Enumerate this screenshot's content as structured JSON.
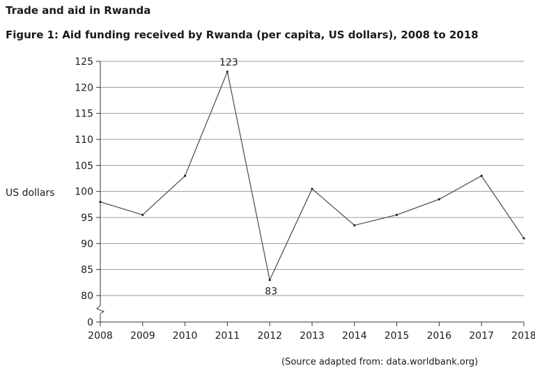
{
  "header": {
    "heading": "Trade and aid in Rwanda",
    "figure_title": "Figure 1: Aid funding received by Rwanda (per capita, US dollars), 2008 to 2018"
  },
  "footer": {
    "source": "(Source adapted from: data.worldbank.org)"
  },
  "chart_data": {
    "type": "line",
    "title": "Figure 1: Aid funding received by Rwanda (per capita, US dollars), 2008 to 2018",
    "xlabel": "",
    "ylabel": "US dollars",
    "categories": [
      "2008",
      "2009",
      "2010",
      "2011",
      "2012",
      "2013",
      "2014",
      "2015",
      "2016",
      "2017",
      "2018"
    ],
    "series": [
      {
        "values": [
          98,
          95.5,
          103,
          123,
          83,
          100.5,
          93.5,
          95.5,
          98.5,
          103,
          91
        ]
      }
    ],
    "y_ticks": [
      0,
      80,
      85,
      90,
      95,
      100,
      105,
      110,
      115,
      120,
      125
    ],
    "ylim": [
      75,
      125
    ],
    "axis_break": true,
    "annotations": [
      {
        "label": "123",
        "x": "2011",
        "y": 123
      },
      {
        "label": "83",
        "x": "2012",
        "y": 83
      }
    ],
    "grid": "horizontal",
    "legend": "none",
    "line_color": "#555555"
  }
}
